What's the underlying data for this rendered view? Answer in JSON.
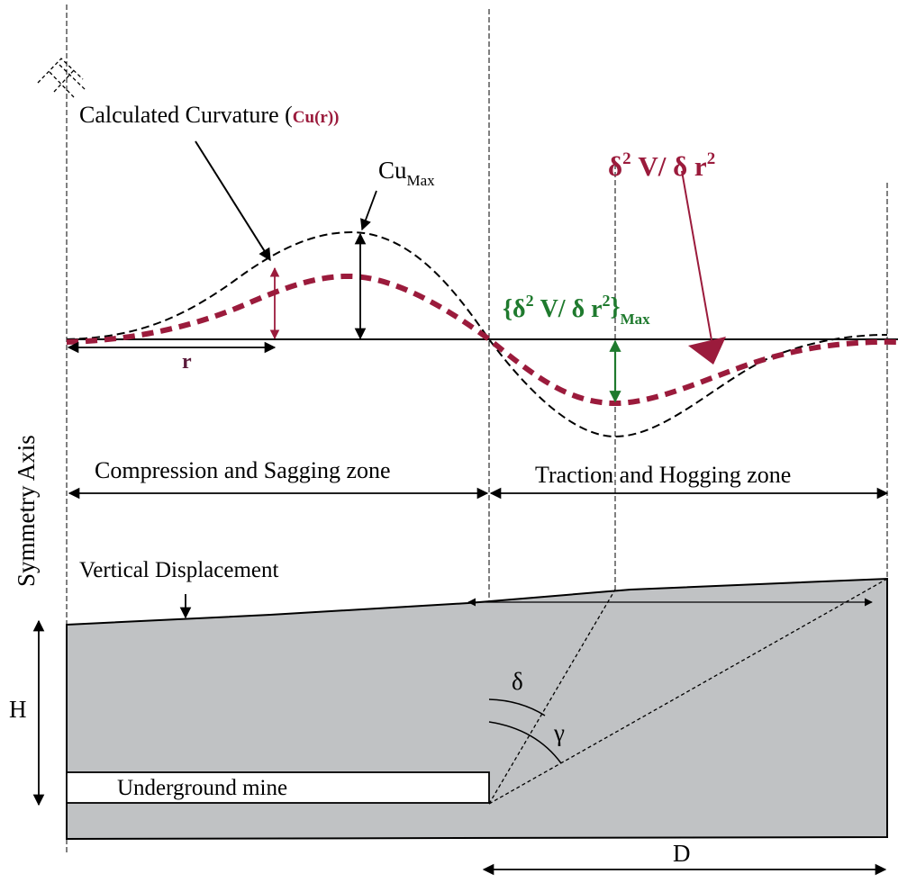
{
  "labels": {
    "calculated_curvature": "Calculated Curvature (",
    "cu_r": "Cu(r))",
    "cu_main": "Cu",
    "cu_sub": "Max",
    "second_derivative": {
      "delta1": "δ",
      "exp1": "2",
      "mid": " V/ δ r",
      "exp2": "2"
    },
    "second_derivative_max": {
      "open": "{δ",
      "exp1": "2",
      "mid": " V/ δ r",
      "exp2": "2",
      "close": "}",
      "sub": "Max"
    },
    "r": "r",
    "compression_zone": "Compression and Sagging zone",
    "traction_zone": "Traction and Hogging zone",
    "symmetry_axis": "Symmetry Axis",
    "vertical_displacement": "Vertical Displacement",
    "H": "H",
    "underground_mine": "Underground mine",
    "delta": "δ",
    "gamma": "γ",
    "D": "D"
  },
  "colors": {
    "curvature": "#9b1b3c",
    "second_derivative_max": "#1f7a2e",
    "ground": "#c0c2c4",
    "line": "#000000"
  }
}
